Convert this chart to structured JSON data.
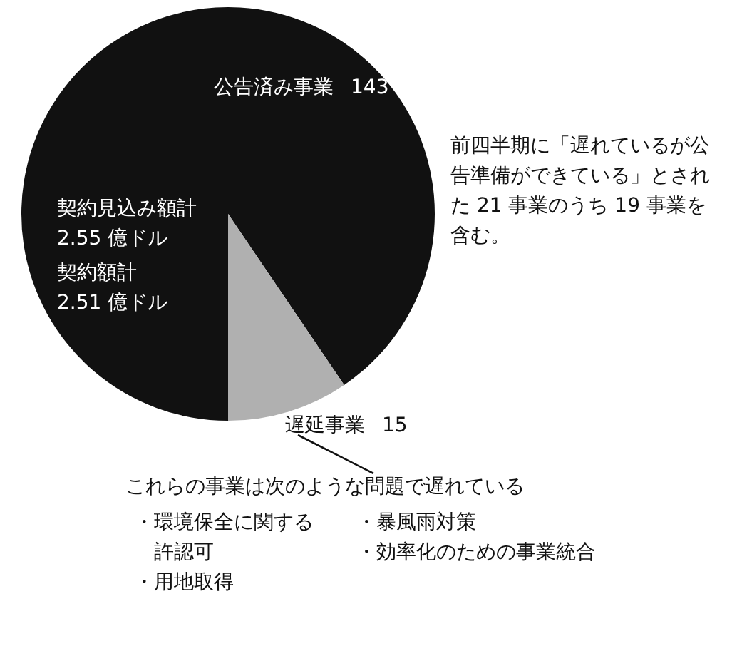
{
  "chart_data": {
    "type": "pie",
    "categories": [
      "公告済み事業",
      "遅延事業"
    ],
    "values": [
      143,
      15
    ],
    "colors": [
      "#111111",
      "#b0b0b0"
    ],
    "data_labels": true,
    "annotations": [
      "契約見込み額計\n2.55 億ドル",
      "契約額計\n2.51 億ドル",
      "前四半期に「遅れているが公告準備ができている」とされた 21 事業のうち 19 事業を含む。",
      "これらの事業は次のような問題で遅れている",
      "・環境保全に関する許認可",
      "・用地取得",
      "・暴風雨対策",
      "・効率化のための事業統合"
    ]
  }
}
